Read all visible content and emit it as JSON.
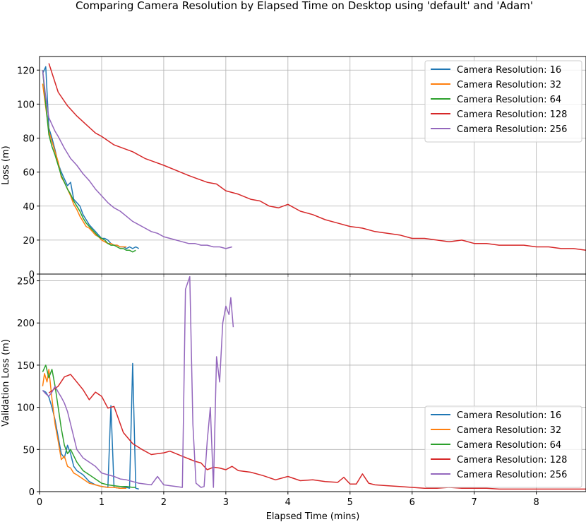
{
  "figure": {
    "title": "Comparing Camera Resolution by Elapsed Time on Desktop using 'default' and 'Adam'"
  },
  "chart_data": [
    {
      "type": "line",
      "panel": "top",
      "xlabel": "",
      "ylabel": "Loss (m)",
      "xlim": [
        0,
        8.8
      ],
      "ylim": [
        0,
        128
      ],
      "xticks": [
        0,
        1,
        2,
        3,
        4,
        5,
        6,
        7,
        8
      ],
      "yticks": [
        0,
        20,
        40,
        60,
        80,
        100,
        120
      ],
      "xtick_labels_visible": false,
      "grid": true,
      "legend": "top-right",
      "series": [
        {
          "name": "Camera Resolution: 16",
          "color": "#1f77b4",
          "x": [
            0.05,
            0.1,
            0.15,
            0.2,
            0.25,
            0.3,
            0.35,
            0.4,
            0.45,
            0.5,
            0.55,
            0.6,
            0.65,
            0.7,
            0.75,
            0.8,
            0.85,
            0.9,
            0.95,
            1.0,
            1.05,
            1.1,
            1.15,
            1.2,
            1.25,
            1.3,
            1.35,
            1.4,
            1.45,
            1.5,
            1.55,
            1.6
          ],
          "y": [
            118,
            122,
            86,
            80,
            73,
            65,
            60,
            56,
            52,
            54,
            44,
            42,
            40,
            35,
            32,
            29,
            27,
            25,
            23,
            21,
            21,
            20,
            18,
            17,
            17,
            16,
            16,
            15,
            16,
            15,
            16,
            15
          ]
        },
        {
          "name": "Camera Resolution: 32",
          "color": "#ff7f0e",
          "x": [
            0.05,
            0.1,
            0.15,
            0.2,
            0.25,
            0.3,
            0.35,
            0.4,
            0.45,
            0.5,
            0.55,
            0.6,
            0.65,
            0.7,
            0.75,
            0.8,
            0.85,
            0.9,
            0.95,
            1.0,
            1.05,
            1.1,
            1.15,
            1.2,
            1.25,
            1.3,
            1.35,
            1.4
          ],
          "y": [
            112,
            98,
            84,
            78,
            72,
            66,
            57,
            54,
            50,
            46,
            41,
            38,
            34,
            31,
            28,
            27,
            25,
            23,
            22,
            20,
            19,
            18,
            18,
            17,
            17,
            16,
            16,
            16
          ]
        },
        {
          "name": "Camera Resolution: 64",
          "color": "#2ca02c",
          "x": [
            0.05,
            0.1,
            0.15,
            0.2,
            0.25,
            0.3,
            0.35,
            0.4,
            0.45,
            0.5,
            0.55,
            0.6,
            0.65,
            0.7,
            0.75,
            0.8,
            0.85,
            0.9,
            0.95,
            1.0,
            1.05,
            1.1,
            1.15,
            1.2,
            1.25,
            1.3,
            1.35,
            1.4,
            1.45,
            1.5,
            1.55
          ],
          "y": [
            120,
            100,
            82,
            75,
            70,
            64,
            58,
            54,
            50,
            47,
            43,
            40,
            37,
            33,
            30,
            28,
            26,
            24,
            22,
            21,
            20,
            18,
            17,
            17,
            16,
            15,
            15,
            14,
            14,
            13,
            14
          ]
        },
        {
          "name": "Camera Resolution: 128",
          "color": "#d62728",
          "x": [
            0.15,
            0.3,
            0.45,
            0.6,
            0.75,
            0.9,
            1.0,
            1.2,
            1.35,
            1.5,
            1.7,
            1.85,
            2.0,
            2.2,
            2.4,
            2.55,
            2.7,
            2.85,
            3.0,
            3.2,
            3.4,
            3.55,
            3.7,
            3.85,
            4.0,
            4.2,
            4.4,
            4.6,
            4.8,
            5.0,
            5.2,
            5.4,
            5.6,
            5.8,
            6.0,
            6.2,
            6.4,
            6.6,
            6.8,
            7.0,
            7.2,
            7.4,
            7.6,
            7.8,
            8.0,
            8.2,
            8.4,
            8.6,
            8.8
          ],
          "y": [
            124,
            107,
            99,
            93,
            88,
            83,
            81,
            76,
            74,
            72,
            68,
            66,
            64,
            61,
            58,
            56,
            54,
            53,
            49,
            47,
            44,
            43,
            40,
            39,
            41,
            37,
            35,
            32,
            30,
            28,
            27,
            25,
            24,
            23,
            21,
            21,
            20,
            19,
            20,
            18,
            18,
            17,
            17,
            17,
            16,
            16,
            15,
            15,
            14
          ]
        },
        {
          "name": "Camera Resolution: 256",
          "color": "#9467bd",
          "x": [
            0.05,
            0.1,
            0.15,
            0.2,
            0.25,
            0.3,
            0.4,
            0.5,
            0.6,
            0.7,
            0.8,
            0.9,
            1.0,
            1.1,
            1.2,
            1.3,
            1.4,
            1.5,
            1.6,
            1.7,
            1.8,
            1.9,
            2.0,
            2.1,
            2.2,
            2.3,
            2.4,
            2.5,
            2.6,
            2.7,
            2.8,
            2.9,
            3.0,
            3.1
          ],
          "y": [
            120,
            104,
            92,
            88,
            84,
            81,
            74,
            68,
            64,
            59,
            55,
            50,
            46,
            42,
            39,
            37,
            34,
            31,
            29,
            27,
            25,
            24,
            22,
            21,
            20,
            19,
            18,
            18,
            17,
            17,
            16,
            16,
            15,
            16
          ]
        }
      ]
    },
    {
      "type": "line",
      "panel": "bottom",
      "xlabel": "Elapsed Time (mins)",
      "ylabel": "Validation Loss (m)",
      "xlim": [
        0,
        8.8
      ],
      "ylim": [
        0,
        258
      ],
      "xticks": [
        0,
        1,
        2,
        3,
        4,
        5,
        6,
        7,
        8
      ],
      "yticks": [
        0,
        50,
        100,
        150,
        200,
        250
      ],
      "grid": true,
      "legend": "bottom-right",
      "series": [
        {
          "name": "Camera Resolution: 16",
          "color": "#1f77b4",
          "x": [
            0.05,
            0.1,
            0.15,
            0.2,
            0.25,
            0.3,
            0.35,
            0.4,
            0.45,
            0.5,
            0.55,
            0.6,
            0.7,
            0.8,
            0.9,
            1.0,
            1.1,
            1.15,
            1.2,
            1.3,
            1.4,
            1.45,
            1.5,
            1.55,
            1.6
          ],
          "y": [
            120,
            118,
            112,
            100,
            85,
            65,
            45,
            40,
            55,
            45,
            30,
            25,
            20,
            12,
            8,
            6,
            5,
            102,
            5,
            4,
            5,
            4,
            152,
            4,
            3
          ]
        },
        {
          "name": "Camera Resolution: 32",
          "color": "#ff7f0e",
          "x": [
            0.05,
            0.08,
            0.12,
            0.15,
            0.2,
            0.25,
            0.3,
            0.35,
            0.4,
            0.45,
            0.5,
            0.55,
            0.6,
            0.7,
            0.8,
            0.9,
            1.0,
            1.1,
            1.2,
            1.3,
            1.4
          ],
          "y": [
            125,
            140,
            130,
            145,
            110,
            80,
            60,
            38,
            42,
            30,
            28,
            22,
            20,
            15,
            10,
            8,
            6,
            5,
            5,
            4,
            4
          ]
        },
        {
          "name": "Camera Resolution: 64",
          "color": "#2ca02c",
          "x": [
            0.05,
            0.1,
            0.15,
            0.2,
            0.25,
            0.3,
            0.35,
            0.4,
            0.45,
            0.5,
            0.6,
            0.7,
            0.8,
            0.9,
            1.0,
            1.1,
            1.2,
            1.3,
            1.4,
            1.5,
            1.55
          ],
          "y": [
            142,
            150,
            135,
            145,
            125,
            100,
            75,
            55,
            45,
            50,
            35,
            25,
            20,
            15,
            10,
            8,
            7,
            6,
            6,
            5,
            5
          ]
        },
        {
          "name": "Camera Resolution: 128",
          "color": "#d62728",
          "x": [
            0.15,
            0.3,
            0.4,
            0.5,
            0.6,
            0.7,
            0.8,
            0.9,
            1.0,
            1.1,
            1.2,
            1.35,
            1.5,
            1.65,
            1.8,
            1.9,
            2.0,
            2.1,
            2.3,
            2.5,
            2.6,
            2.7,
            2.8,
            2.9,
            3.0,
            3.1,
            3.2,
            3.4,
            3.6,
            3.8,
            4.0,
            4.2,
            4.4,
            4.6,
            4.8,
            4.9,
            5.0,
            5.1,
            5.2,
            5.3,
            5.4,
            5.6,
            5.8,
            6.0,
            6.2,
            6.4,
            6.6,
            6.8,
            7.0,
            7.2,
            7.4,
            7.6,
            7.8,
            8.0,
            8.2,
            8.4,
            8.6,
            8.8
          ],
          "y": [
            117,
            125,
            136,
            139,
            130,
            121,
            109,
            118,
            113,
            99,
            101,
            70,
            57,
            50,
            44,
            45,
            46,
            48,
            42,
            36,
            34,
            26,
            29,
            28,
            26,
            30,
            25,
            23,
            19,
            14,
            18,
            13,
            14,
            12,
            11,
            17,
            9,
            9,
            21,
            10,
            8,
            7,
            6,
            5,
            4,
            4,
            5,
            4,
            4,
            4,
            3,
            3,
            3,
            3,
            3,
            3,
            3,
            3
          ]
        },
        {
          "name": "Camera Resolution: 256",
          "color": "#9467bd",
          "x": [
            0.05,
            0.1,
            0.15,
            0.2,
            0.25,
            0.3,
            0.35,
            0.4,
            0.45,
            0.5,
            0.6,
            0.7,
            0.8,
            0.9,
            1.0,
            1.1,
            1.2,
            1.3,
            1.4,
            1.5,
            1.6,
            1.7,
            1.8,
            1.9,
            2.0,
            2.1,
            2.2,
            2.3,
            2.35,
            2.42,
            2.47,
            2.52,
            2.6,
            2.65,
            2.7,
            2.75,
            2.8,
            2.85,
            2.9,
            2.95,
            3.0,
            3.05,
            3.08,
            3.12
          ],
          "y": [
            120,
            116,
            113,
            118,
            125,
            118,
            112,
            105,
            95,
            80,
            50,
            40,
            35,
            30,
            22,
            20,
            18,
            15,
            14,
            12,
            10,
            9,
            8,
            18,
            8,
            7,
            6,
            5,
            240,
            255,
            80,
            10,
            5,
            6,
            60,
            100,
            5,
            160,
            130,
            200,
            220,
            210,
            230,
            195
          ]
        }
      ]
    }
  ]
}
